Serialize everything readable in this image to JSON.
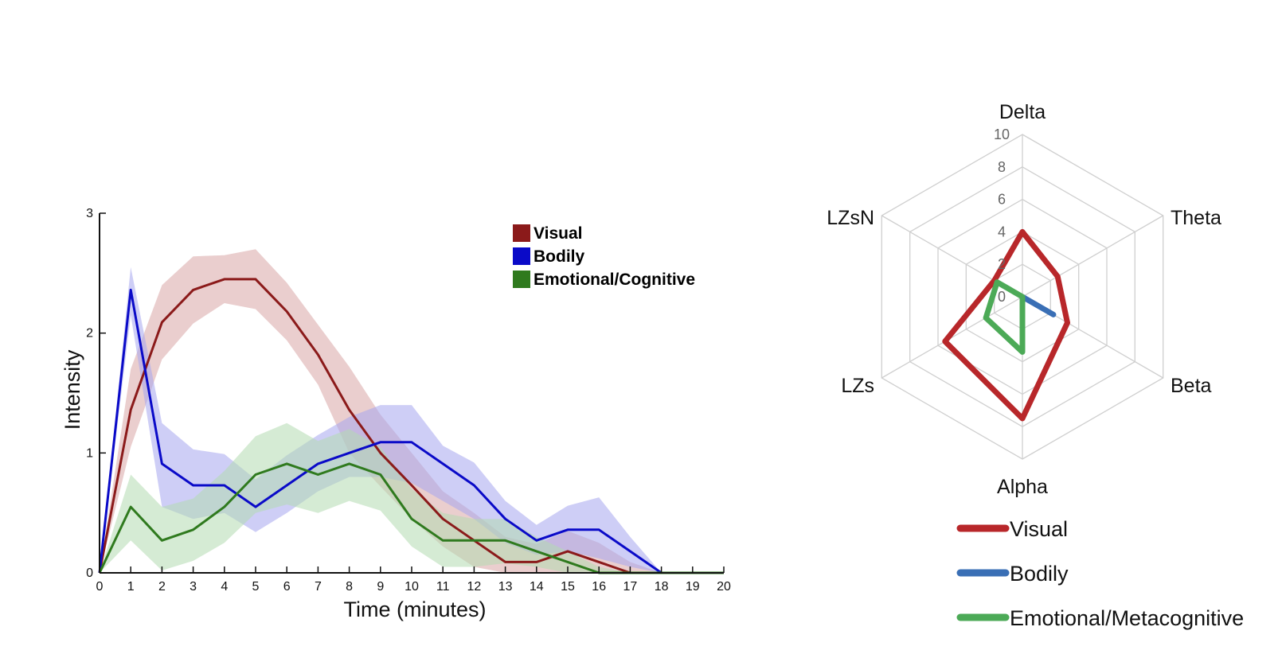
{
  "chart_data": [
    {
      "type": "line",
      "xlabel": "Time (minutes)",
      "ylabel": "Intensity",
      "xlim": [
        0,
        20
      ],
      "ylim": [
        0,
        3
      ],
      "x": [
        0,
        1,
        2,
        3,
        4,
        5,
        6,
        7,
        8,
        9,
        10,
        11,
        12,
        13,
        14,
        15,
        16,
        17,
        18,
        19,
        20
      ],
      "x_tick_labels": [
        "0",
        "1",
        "2",
        "3",
        "4",
        "5",
        "6",
        "7",
        "8",
        "9",
        "10",
        "11",
        "12",
        "13",
        "14",
        "15",
        "16",
        "17",
        "18",
        "19",
        "20"
      ],
      "y_ticks": [
        0,
        1,
        2,
        3
      ],
      "y_tick_labels": [
        "0",
        "1",
        "2",
        "3"
      ],
      "legend_position": "top-right",
      "series": [
        {
          "name": "Visual",
          "color": "#8b1a1a",
          "band_color": "#d9a5a5",
          "values": [
            0,
            1.36,
            2.09,
            2.36,
            2.45,
            2.45,
            2.18,
            1.82,
            1.36,
            1.0,
            0.73,
            0.45,
            0.27,
            0.09,
            0.09,
            0.18,
            0.09,
            0,
            0,
            0,
            0
          ],
          "upper": [
            0,
            1.7,
            2.4,
            2.64,
            2.65,
            2.7,
            2.42,
            2.07,
            1.72,
            1.32,
            1.0,
            0.68,
            0.5,
            0.3,
            0.24,
            0.35,
            0.25,
            0.09,
            0,
            0,
            0
          ],
          "lower": [
            0,
            1.05,
            1.78,
            2.08,
            2.25,
            2.2,
            1.94,
            1.57,
            1.0,
            0.72,
            0.45,
            0.22,
            0.05,
            0,
            0,
            0,
            0,
            0,
            0,
            0,
            0
          ]
        },
        {
          "name": "Bodily",
          "color": "#0a0ac8",
          "band_color": "#a6a6ee",
          "values": [
            0,
            2.36,
            0.91,
            0.73,
            0.73,
            0.55,
            0.73,
            0.91,
            1.0,
            1.09,
            1.09,
            0.91,
            0.73,
            0.45,
            0.27,
            0.36,
            0.36,
            0.18,
            0,
            0,
            0
          ],
          "upper": [
            0,
            2.55,
            1.25,
            1.03,
            0.99,
            0.78,
            0.98,
            1.15,
            1.3,
            1.4,
            1.4,
            1.06,
            0.92,
            0.6,
            0.4,
            0.56,
            0.63,
            0.3,
            0,
            0,
            0
          ],
          "lower": [
            0,
            2.15,
            0.55,
            0.45,
            0.5,
            0.34,
            0.5,
            0.68,
            0.8,
            0.8,
            0.75,
            0.6,
            0.45,
            0.25,
            0.15,
            0.18,
            0.12,
            0.05,
            0,
            0,
            0
          ]
        },
        {
          "name": "Emotional/Cognitive",
          "color": "#2f7a1e",
          "band_color": "#b2dab0",
          "values": [
            0,
            0.55,
            0.27,
            0.36,
            0.55,
            0.82,
            0.91,
            0.82,
            0.91,
            0.82,
            0.45,
            0.27,
            0.27,
            0.27,
            0.18,
            0.09,
            0,
            0,
            0,
            0,
            0
          ],
          "upper": [
            0,
            0.82,
            0.55,
            0.62,
            0.85,
            1.14,
            1.25,
            1.1,
            1.2,
            1.05,
            0.7,
            0.5,
            0.45,
            0.45,
            0.3,
            0.18,
            0.05,
            0,
            0,
            0,
            0
          ],
          "lower": [
            0,
            0.27,
            0.02,
            0.1,
            0.25,
            0.5,
            0.57,
            0.5,
            0.6,
            0.52,
            0.22,
            0.05,
            0.05,
            0.08,
            0.05,
            0,
            0,
            0,
            0,
            0,
            0
          ]
        }
      ]
    },
    {
      "type": "radar",
      "axes": [
        "Delta",
        "Theta",
        "Beta",
        "Alpha",
        "LZs",
        "LZsN"
      ],
      "r_ticks": [
        0,
        2,
        4,
        6,
        8,
        10
      ],
      "r_tick_labels": [
        "0",
        "2",
        "4",
        "6",
        "8",
        "10"
      ],
      "rlim": [
        0,
        10
      ],
      "legend_position": "bottom",
      "series": [
        {
          "name": "Visual",
          "color": "#b8272a",
          "values": [
            4.0,
            2.5,
            3.2,
            7.5,
            5.5,
            2.0
          ]
        },
        {
          "name": "Bodily",
          "color": "#3a6fb5",
          "values": [
            0.0,
            0.0,
            2.2,
            0.0,
            0.0,
            0.0
          ]
        },
        {
          "name": "Emotional/Metacognitive",
          "color": "#4caa57",
          "values": [
            0.0,
            0.0,
            0.0,
            3.4,
            2.6,
            1.8
          ]
        }
      ]
    }
  ]
}
